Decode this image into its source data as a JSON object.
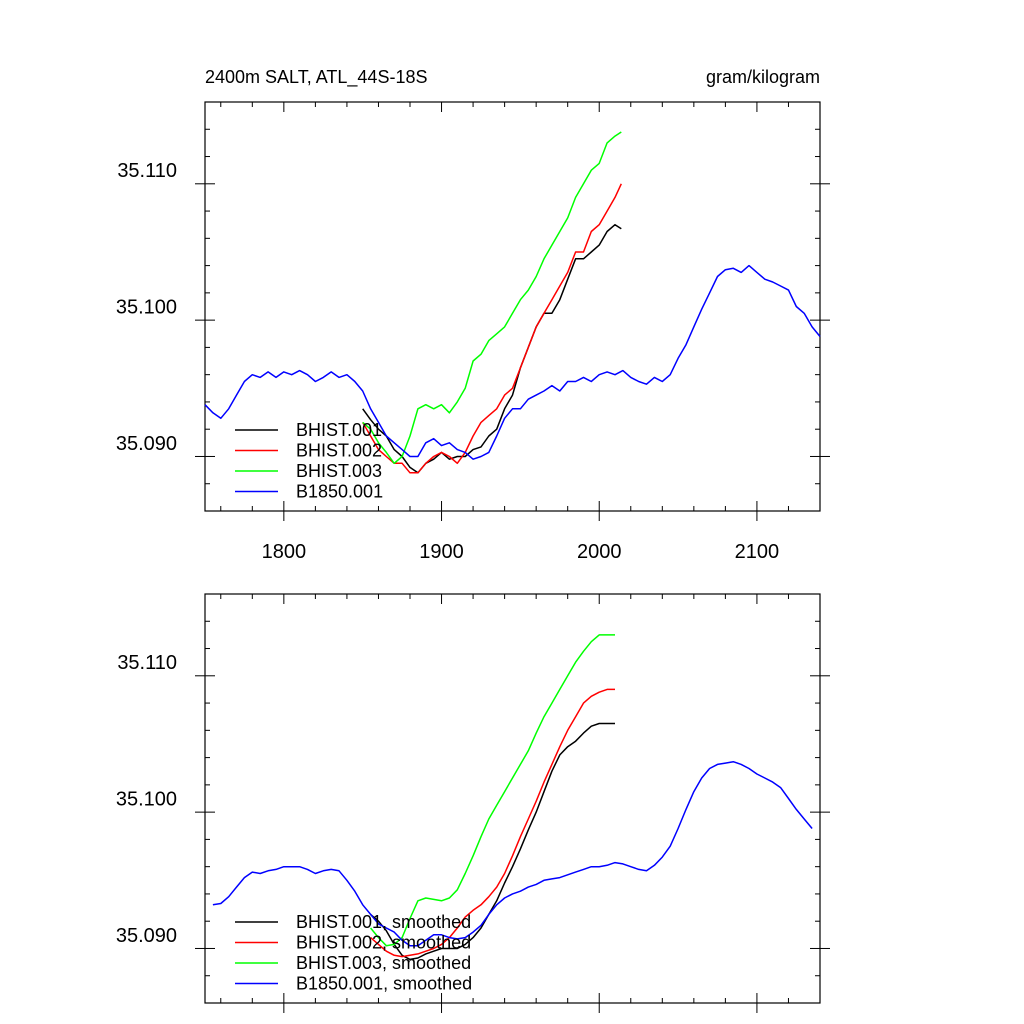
{
  "chart_data": [
    {
      "type": "line",
      "title": "2400m SALT, ATL_44S-18S",
      "units": "gram/kilogram",
      "xlabel": "",
      "ylabel": "",
      "xlim": [
        1750,
        2140
      ],
      "ylim": [
        35.085,
        35.115
      ],
      "xticks": [
        1800,
        1900,
        2000,
        2100
      ],
      "xtick_labels": [
        "1800",
        "1900",
        "2000",
        "2100"
      ],
      "yticks": [
        35.09,
        35.1,
        35.11
      ],
      "ytick_labels": [
        "35.090",
        "35.100",
        "35.110"
      ],
      "legend_position": "bottom-left",
      "series": [
        {
          "name": "BHIST.001",
          "color": "#000000",
          "x": [
            1850,
            1855,
            1860,
            1865,
            1870,
            1875,
            1880,
            1885,
            1890,
            1895,
            1900,
            1905,
            1910,
            1915,
            1920,
            1925,
            1930,
            1935,
            1940,
            1945,
            1950,
            1955,
            1960,
            1965,
            1970,
            1975,
            1980,
            1985,
            1990,
            1995,
            2000,
            2005,
            2010,
            2014
          ],
          "y": [
            35.0925,
            35.0917,
            35.091,
            35.0905,
            35.0895,
            35.089,
            35.0882,
            35.0878,
            35.0885,
            35.0888,
            35.0893,
            35.0888,
            35.089,
            35.089,
            35.0895,
            35.0897,
            35.0905,
            35.091,
            35.0925,
            35.0935,
            35.0955,
            35.097,
            35.0985,
            35.0995,
            35.0995,
            35.1005,
            35.102,
            35.1035,
            35.1035,
            35.104,
            35.1045,
            35.1055,
            35.106,
            35.1057
          ]
        },
        {
          "name": "BHIST.002",
          "color": "#ff0000",
          "x": [
            1850,
            1855,
            1860,
            1865,
            1870,
            1875,
            1880,
            1885,
            1890,
            1895,
            1900,
            1905,
            1910,
            1915,
            1920,
            1925,
            1930,
            1935,
            1940,
            1945,
            1950,
            1955,
            1960,
            1965,
            1970,
            1975,
            1980,
            1985,
            1990,
            1995,
            2000,
            2005,
            2010,
            2014
          ],
          "y": [
            35.0915,
            35.0905,
            35.0895,
            35.089,
            35.0885,
            35.0885,
            35.0878,
            35.0878,
            35.0885,
            35.089,
            35.0893,
            35.089,
            35.0885,
            35.0893,
            35.0905,
            35.0915,
            35.092,
            35.0925,
            35.0935,
            35.094,
            35.0955,
            35.097,
            35.0985,
            35.0995,
            35.1005,
            35.1015,
            35.1025,
            35.104,
            35.104,
            35.1055,
            35.106,
            35.107,
            35.108,
            35.109
          ]
        },
        {
          "name": "BHIST.003",
          "color": "#00ff00",
          "x": [
            1850,
            1855,
            1860,
            1865,
            1870,
            1875,
            1880,
            1885,
            1890,
            1895,
            1900,
            1905,
            1910,
            1915,
            1920,
            1925,
            1930,
            1935,
            1940,
            1945,
            1950,
            1955,
            1960,
            1965,
            1970,
            1975,
            1980,
            1985,
            1990,
            1995,
            2000,
            2005,
            2010,
            2014
          ],
          "y": [
            35.0915,
            35.091,
            35.09,
            35.0893,
            35.0885,
            35.089,
            35.0905,
            35.0925,
            35.0928,
            35.0925,
            35.0928,
            35.0922,
            35.093,
            35.094,
            35.096,
            35.0965,
            35.0975,
            35.098,
            35.0985,
            35.0995,
            35.1005,
            35.1012,
            35.1022,
            35.1035,
            35.1045,
            35.1055,
            35.1065,
            35.108,
            35.109,
            35.11,
            35.1105,
            35.112,
            35.1125,
            35.1128
          ]
        },
        {
          "name": "B1850.001",
          "color": "#0000ff",
          "x": [
            1750,
            1755,
            1760,
            1765,
            1770,
            1775,
            1780,
            1785,
            1790,
            1795,
            1800,
            1805,
            1810,
            1815,
            1820,
            1825,
            1830,
            1835,
            1840,
            1845,
            1850,
            1855,
            1860,
            1865,
            1870,
            1875,
            1880,
            1885,
            1890,
            1895,
            1900,
            1905,
            1910,
            1915,
            1920,
            1925,
            1930,
            1935,
            1940,
            1945,
            1950,
            1955,
            1960,
            1965,
            1970,
            1975,
            1980,
            1985,
            1990,
            1995,
            2000,
            2005,
            2010,
            2015,
            2020,
            2025,
            2030,
            2035,
            2040,
            2045,
            2050,
            2055,
            2060,
            2065,
            2070,
            2075,
            2080,
            2085,
            2090,
            2095,
            2100,
            2105,
            2110,
            2115,
            2120,
            2125,
            2130,
            2135,
            2140
          ],
          "y": [
            35.0928,
            35.0922,
            35.0918,
            35.0925,
            35.0935,
            35.0945,
            35.095,
            35.0948,
            35.0952,
            35.0948,
            35.0952,
            35.095,
            35.0953,
            35.095,
            35.0945,
            35.0948,
            35.0952,
            35.0948,
            35.095,
            35.0945,
            35.0938,
            35.0925,
            35.0915,
            35.0905,
            35.09,
            35.0895,
            35.089,
            35.089,
            35.09,
            35.0903,
            35.0898,
            35.09,
            35.0895,
            35.0893,
            35.0888,
            35.089,
            35.0893,
            35.0905,
            35.0918,
            35.0925,
            35.0925,
            35.0932,
            35.0935,
            35.0938,
            35.0942,
            35.0938,
            35.0945,
            35.0945,
            35.0948,
            35.0945,
            35.095,
            35.0952,
            35.095,
            35.0953,
            35.0948,
            35.0945,
            35.0943,
            35.0948,
            35.0945,
            35.095,
            35.0962,
            35.0972,
            35.0985,
            35.0998,
            35.101,
            35.1022,
            35.1027,
            35.1028,
            35.1025,
            35.103,
            35.1025,
            35.102,
            35.1018,
            35.1015,
            35.1012,
            35.1,
            35.0995,
            35.0985,
            35.0978
          ]
        }
      ]
    },
    {
      "type": "line",
      "title": "",
      "xlabel": "",
      "ylabel": "",
      "xlim": [
        1750,
        2140
      ],
      "ylim": [
        35.085,
        35.115
      ],
      "xticks": [
        1800,
        1900,
        2000,
        2100
      ],
      "yticks": [
        35.09,
        35.1,
        35.11
      ],
      "ytick_labels": [
        "35.090",
        "35.100",
        "35.110"
      ],
      "legend_position": "bottom-left",
      "series": [
        {
          "name": "BHIST.001, smoothed",
          "color": "#000000",
          "x": [
            1855,
            1860,
            1865,
            1870,
            1875,
            1880,
            1885,
            1890,
            1895,
            1900,
            1905,
            1910,
            1915,
            1920,
            1925,
            1930,
            1935,
            1940,
            1945,
            1950,
            1955,
            1960,
            1965,
            1970,
            1975,
            1980,
            1985,
            1990,
            1995,
            2000,
            2005,
            2010
          ],
          "y": [
            35.0915,
            35.091,
            35.0903,
            35.0893,
            35.0885,
            35.0882,
            35.0883,
            35.0886,
            35.0888,
            35.089,
            35.089,
            35.089,
            35.0893,
            35.0898,
            35.0905,
            35.0915,
            35.0925,
            35.0938,
            35.095,
            35.0963,
            35.0977,
            35.099,
            35.1005,
            35.102,
            35.1032,
            35.1038,
            35.1042,
            35.1048,
            35.1053,
            35.1055,
            35.1055,
            35.1055
          ]
        },
        {
          "name": "BHIST.002, smoothed",
          "color": "#ff0000",
          "x": [
            1855,
            1860,
            1865,
            1870,
            1875,
            1880,
            1885,
            1890,
            1895,
            1900,
            1905,
            1910,
            1915,
            1920,
            1925,
            1930,
            1935,
            1940,
            1945,
            1950,
            1955,
            1960,
            1965,
            1970,
            1975,
            1980,
            1985,
            1990,
            1995,
            2000,
            2005,
            2010
          ],
          "y": [
            35.0898,
            35.0893,
            35.0888,
            35.0885,
            35.0884,
            35.0885,
            35.0886,
            35.0888,
            35.089,
            35.0893,
            35.0898,
            35.0905,
            35.0913,
            35.0918,
            35.0922,
            35.0928,
            35.0935,
            35.0945,
            35.0958,
            35.0972,
            35.0985,
            35.0998,
            35.1012,
            35.1025,
            35.1038,
            35.105,
            35.106,
            35.107,
            35.1075,
            35.1078,
            35.108,
            35.108
          ]
        },
        {
          "name": "BHIST.003, smoothed",
          "color": "#00ff00",
          "x": [
            1855,
            1860,
            1865,
            1870,
            1875,
            1880,
            1885,
            1890,
            1895,
            1900,
            1905,
            1910,
            1915,
            1920,
            1925,
            1930,
            1935,
            1940,
            1945,
            1950,
            1955,
            1960,
            1965,
            1970,
            1975,
            1980,
            1985,
            1990,
            1995,
            2000,
            2005,
            2010
          ],
          "y": [
            35.0905,
            35.0898,
            35.0892,
            35.0893,
            35.0898,
            35.0912,
            35.0925,
            35.0927,
            35.0926,
            35.0925,
            35.0927,
            35.0933,
            35.0945,
            35.0958,
            35.0972,
            35.0985,
            35.0995,
            35.1005,
            35.1015,
            35.1025,
            35.1035,
            35.1048,
            35.106,
            35.107,
            35.108,
            35.109,
            35.11,
            35.1108,
            35.1115,
            35.112,
            35.112,
            35.112
          ]
        },
        {
          "name": "B1850.001, smoothed",
          "color": "#0000ff",
          "x": [
            1755,
            1760,
            1765,
            1770,
            1775,
            1780,
            1785,
            1790,
            1795,
            1800,
            1805,
            1810,
            1815,
            1820,
            1825,
            1830,
            1835,
            1840,
            1845,
            1850,
            1855,
            1860,
            1865,
            1870,
            1875,
            1880,
            1885,
            1890,
            1895,
            1900,
            1905,
            1910,
            1915,
            1920,
            1925,
            1930,
            1935,
            1940,
            1945,
            1950,
            1955,
            1960,
            1965,
            1970,
            1975,
            1980,
            1985,
            1990,
            1995,
            2000,
            2005,
            2010,
            2015,
            2020,
            2025,
            2030,
            2035,
            2040,
            2045,
            2050,
            2055,
            2060,
            2065,
            2070,
            2075,
            2080,
            2085,
            2090,
            2095,
            2100,
            2105,
            2110,
            2115,
            2120,
            2125,
            2130,
            2135
          ],
          "y": [
            35.0922,
            35.0923,
            35.0928,
            35.0935,
            35.0942,
            35.0946,
            35.0945,
            35.0947,
            35.0948,
            35.095,
            35.095,
            35.095,
            35.0948,
            35.0945,
            35.0947,
            35.0948,
            35.0947,
            35.094,
            35.0932,
            35.0922,
            35.0915,
            35.0908,
            35.0905,
            35.0902,
            35.0896,
            35.0892,
            35.0892,
            35.0896,
            35.09,
            35.09,
            35.0898,
            35.0897,
            35.0898,
            35.0902,
            35.0907,
            35.0915,
            35.0922,
            35.0927,
            35.093,
            35.0932,
            35.0935,
            35.0937,
            35.094,
            35.0941,
            35.0942,
            35.0944,
            35.0946,
            35.0948,
            35.095,
            35.095,
            35.0951,
            35.0953,
            35.0952,
            35.095,
            35.0948,
            35.0947,
            35.0951,
            35.0957,
            35.0965,
            35.0978,
            35.0992,
            35.1005,
            35.1015,
            35.1022,
            35.1025,
            35.1026,
            35.1027,
            35.1025,
            35.1022,
            35.1018,
            35.1015,
            35.1012,
            35.1008,
            35.1,
            35.0992,
            35.0985,
            35.0978
          ]
        }
      ]
    }
  ]
}
